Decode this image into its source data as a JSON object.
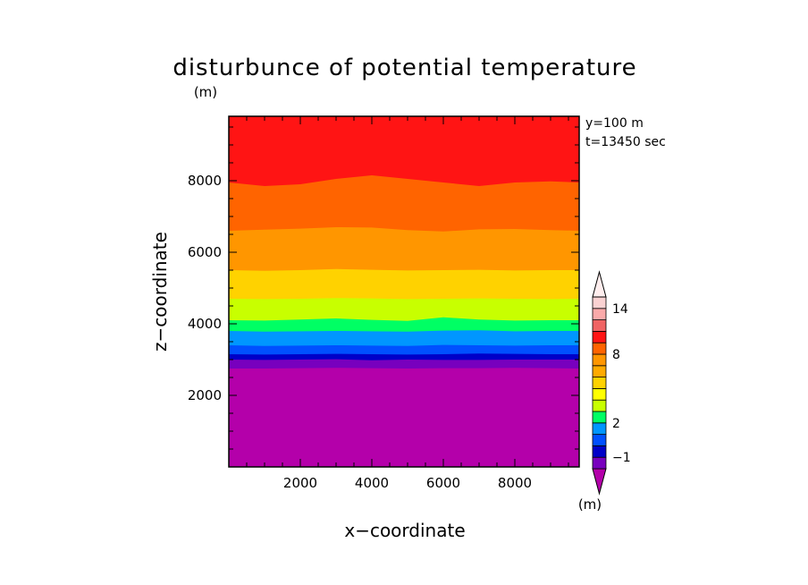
{
  "chart_data": {
    "type": "heatmap",
    "title": "disturbunce of potential temperature",
    "title_unit": "(m)",
    "xlabel": "x−coordinate",
    "ylabel": "z−coordinate",
    "annotations": [
      "y=100 m",
      "t=13450 sec"
    ],
    "xlim": [
      0,
      9800
    ],
    "ylim": [
      0,
      9800
    ],
    "x_ticks": [
      2000,
      4000,
      6000,
      8000
    ],
    "y_ticks": [
      2000,
      4000,
      6000,
      8000
    ],
    "x_tick_labels": [
      "2000",
      "4000",
      "6000",
      "8000"
    ],
    "y_tick_labels": [
      "2000",
      "4000",
      "6000",
      "8000"
    ],
    "colorbar": {
      "unit": "(m)",
      "tick_labels": [
        "14",
        "8",
        "2",
        "−1"
      ],
      "tick_values": [
        14,
        8,
        2,
        -1
      ],
      "levels_bottom_to_top": [
        -2,
        -1,
        0,
        1,
        2,
        3,
        4,
        5,
        6,
        7,
        8,
        9,
        10,
        12,
        14,
        16
      ],
      "colors_bottom_to_top": [
        "#b400aa",
        "#7800be",
        "#0000c8",
        "#0050ff",
        "#0096ff",
        "#00ff64",
        "#c8ff00",
        "#ffff00",
        "#ffd200",
        "#ffaa00",
        "#ff9600",
        "#ff6400",
        "#ff1414",
        "#f06464",
        "#faaaaa",
        "#fad2d2",
        "#ffeeee"
      ]
    },
    "contour_bands": [
      {
        "label": "< -2",
        "color": "#b400aa",
        "z_top": [
          2750,
          2750,
          2760,
          2770,
          2760,
          2750,
          2760,
          2760,
          2770,
          2760,
          2750
        ]
      },
      {
        "label": "-2 to -1",
        "color": "#7800be",
        "z_top": [
          3000,
          2990,
          3000,
          3010,
          2980,
          3000,
          2990,
          2990,
          3000,
          3000,
          3000
        ]
      },
      {
        "label": "-1 to 0",
        "color": "#0000c8",
        "z_top": [
          3150,
          3140,
          3150,
          3160,
          3150,
          3140,
          3150,
          3170,
          3160,
          3150,
          3150
        ]
      },
      {
        "label": "0 to 1",
        "color": "#0050ff",
        "z_top": [
          3400,
          3380,
          3390,
          3400,
          3390,
          3380,
          3410,
          3400,
          3390,
          3400,
          3400
        ]
      },
      {
        "label": "1 to 2",
        "color": "#0096ff",
        "z_top": [
          3800,
          3780,
          3790,
          3800,
          3790,
          3780,
          3810,
          3820,
          3790,
          3800,
          3800
        ]
      },
      {
        "label": "2 to 3",
        "color": "#00ff64",
        "z_top": [
          4100,
          4090,
          4120,
          4150,
          4110,
          4080,
          4180,
          4120,
          4090,
          4100,
          4100
        ]
      },
      {
        "label": "3 to 4",
        "color": "#c8ff00",
        "z_top": [
          4700,
          4690,
          4700,
          4720,
          4710,
          4690,
          4700,
          4710,
          4700,
          4690,
          4700
        ]
      },
      {
        "label": "4 to 5",
        "color": "#ffd200",
        "z_top": [
          5500,
          5480,
          5500,
          5530,
          5510,
          5490,
          5500,
          5510,
          5490,
          5500,
          5500
        ]
      },
      {
        "label": "5 to 8",
        "color": "#ff9600",
        "z_top": [
          6600,
          6630,
          6660,
          6700,
          6690,
          6620,
          6580,
          6640,
          6650,
          6620,
          6600
        ]
      },
      {
        "label": "8 to 11",
        "color": "#ff6400",
        "z_top": [
          7950,
          7850,
          7900,
          8050,
          8150,
          8050,
          7950,
          7850,
          7950,
          7980,
          7950
        ]
      },
      {
        "label": "> 11",
        "color": "#ff1414",
        "z_top": [
          9800,
          9800,
          9800,
          9800,
          9800,
          9800,
          9800,
          9800,
          9800,
          9800,
          9800
        ]
      }
    ],
    "band_x": [
      0,
      1000,
      2000,
      3000,
      4000,
      5000,
      6000,
      7000,
      8000,
      9000,
      9800
    ],
    "grid": false,
    "legend": "right colorbar"
  }
}
